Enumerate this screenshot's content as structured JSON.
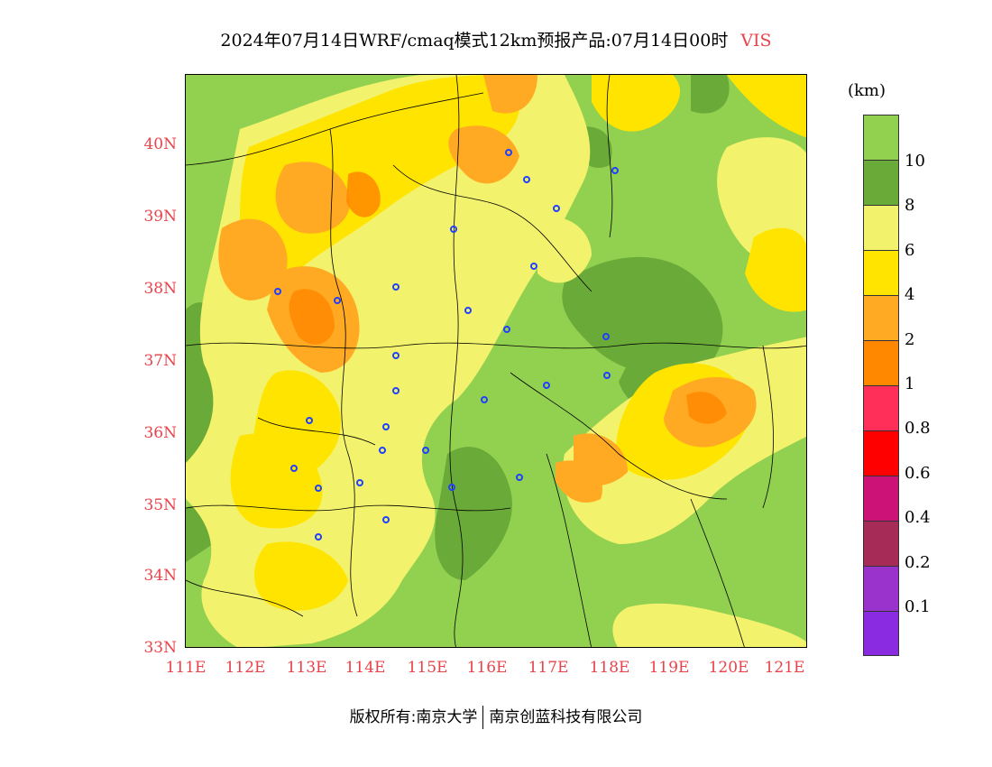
{
  "header": {
    "title": "2024年07月14日WRF/cmaq模式12km预报产品:07月14日00时",
    "variable": "VIS"
  },
  "axes": {
    "lat_labels": [
      "40N",
      "39N",
      "38N",
      "37N",
      "36N",
      "35N",
      "34N",
      "33N"
    ],
    "lon_labels": [
      "111E",
      "112E",
      "113E",
      "114E",
      "115E",
      "116E",
      "117E",
      "118E",
      "119E",
      "120E",
      "121E"
    ],
    "label_color": "#e8434a"
  },
  "legend": {
    "unit": "(km)",
    "labels": [
      "10",
      "8",
      "6",
      "4",
      "2",
      "1",
      "0.8",
      "0.6",
      "0.4",
      "0.2",
      "0.1"
    ],
    "colors": [
      "#92d050",
      "#6aaa38",
      "#f2f26c",
      "#ffe400",
      "#ffaa22",
      "#ff8800",
      "#ff2f5a",
      "#ff0000",
      "#cc1277",
      "#a62b57",
      "#9933cc",
      "#8a2be2"
    ]
  },
  "footer": {
    "left": "版权所有:南京大学",
    "right": "南京创蓝科技有限公司"
  },
  "map": {
    "region": "North China Plain",
    "markers": "city stations",
    "marker_color": "#2040ff"
  }
}
